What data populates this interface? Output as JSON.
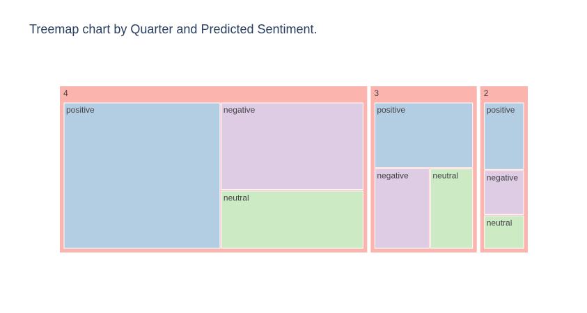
{
  "title": "Treemap chart by Quarter and Predicted Sentiment.",
  "chart_data": {
    "type": "treemap",
    "title": "Treemap chart by Quarter and Predicted Sentiment.",
    "levels": [
      "Quarter",
      "Predicted Sentiment"
    ],
    "parents": [
      {
        "label": "4",
        "children": [
          {
            "label": "positive",
            "value": 44
          },
          {
            "label": "negative",
            "value": 24
          },
          {
            "label": "neutral",
            "value": 16
          }
        ]
      },
      {
        "label": "3",
        "children": [
          {
            "label": "positive",
            "value": 13
          },
          {
            "label": "negative",
            "value": 9
          },
          {
            "label": "neutral",
            "value": 7
          }
        ]
      },
      {
        "label": "2",
        "children": [
          {
            "label": "positive",
            "value": 6
          },
          {
            "label": "negative",
            "value": 4
          },
          {
            "label": "neutral",
            "value": 3
          }
        ]
      }
    ],
    "colors": {
      "parent": "#fbb4ae",
      "positive": "#b3cde3",
      "negative": "#decbe4",
      "neutral": "#ccebc5"
    }
  }
}
